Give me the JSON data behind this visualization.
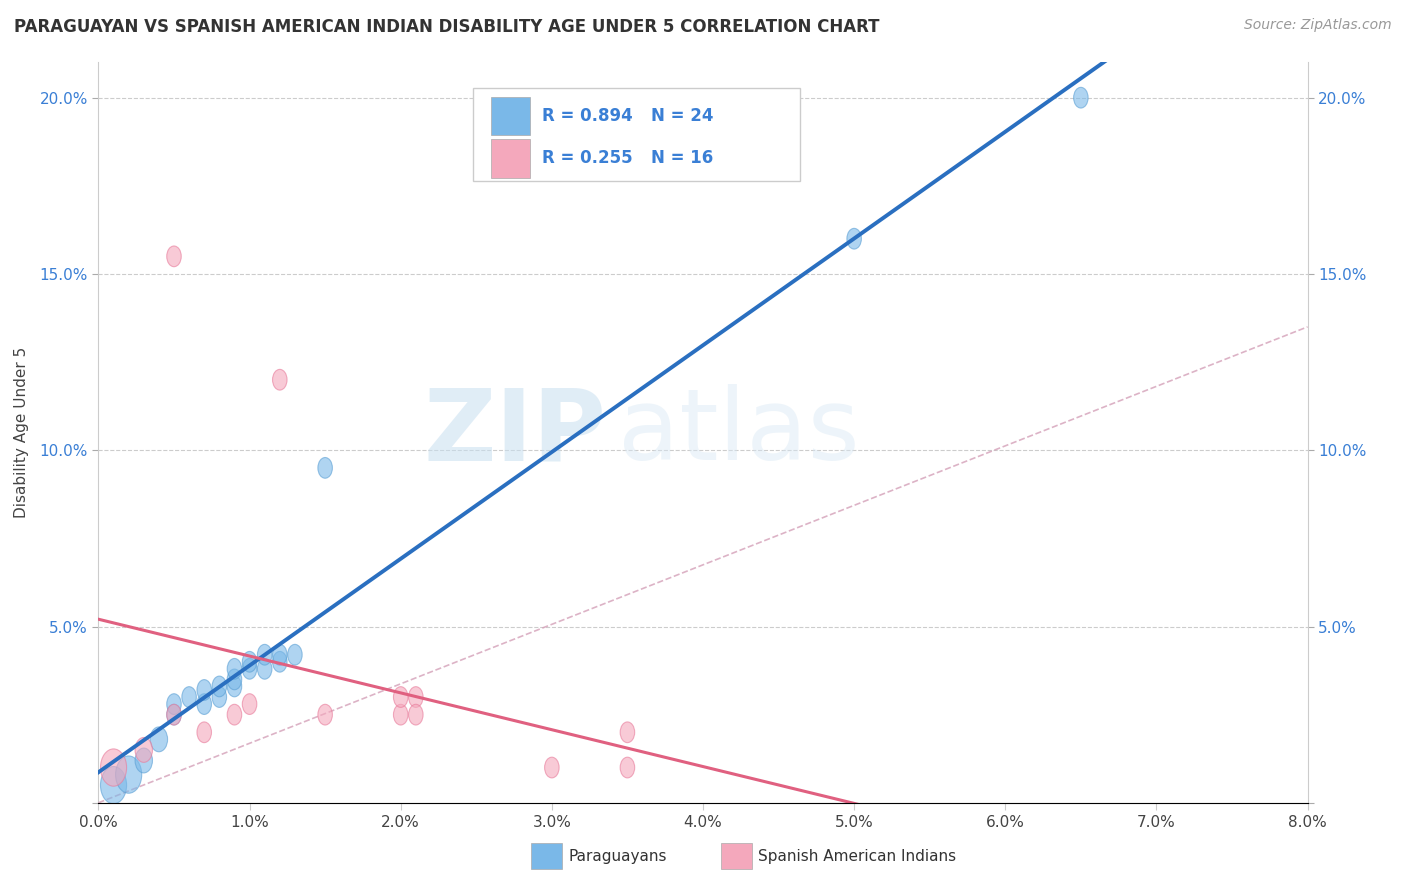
{
  "title": "PARAGUAYAN VS SPANISH AMERICAN INDIAN DISABILITY AGE UNDER 5 CORRELATION CHART",
  "source": "Source: ZipAtlas.com",
  "ylabel": "Disability Age Under 5",
  "xlim": [
    0.0,
    0.08
  ],
  "ylim": [
    0.0,
    0.21
  ],
  "background_color": "#ffffff",
  "watermark_zip": "ZIP",
  "watermark_atlas": "atlas",
  "paraguayan_color": "#7ab8e8",
  "paraguayan_edge": "#5a9fd4",
  "spanish_color": "#f4a8bc",
  "spanish_edge": "#e87a9a",
  "regression_blue": "#2a6fc0",
  "regression_pink": "#e06080",
  "regression_dashed_color": "#e0a0b0",
  "paraguayan_x": [
    0.001,
    0.002,
    0.003,
    0.004,
    0.005,
    0.005,
    0.006,
    0.007,
    0.007,
    0.008,
    0.008,
    0.009,
    0.009,
    0.009,
    0.01,
    0.01,
    0.011,
    0.011,
    0.012,
    0.012,
    0.013,
    0.015,
    0.05,
    0.065
  ],
  "paraguayan_y": [
    0.005,
    0.008,
    0.012,
    0.018,
    0.025,
    0.028,
    0.03,
    0.028,
    0.032,
    0.03,
    0.033,
    0.033,
    0.035,
    0.038,
    0.038,
    0.04,
    0.038,
    0.042,
    0.04,
    0.042,
    0.042,
    0.095,
    0.16,
    0.2
  ],
  "paraguayan_sizes": [
    3.0,
    1.5,
    1.5,
    1.5,
    1.5,
    1.5,
    1.5,
    1.5,
    1.5,
    1.5,
    1.5,
    1.5,
    1.5,
    1.5,
    1.5,
    1.5,
    1.5,
    1.5,
    1.5,
    1.5,
    1.5,
    1.5,
    1.5,
    1.5
  ],
  "spanish_x": [
    0.001,
    0.003,
    0.005,
    0.007,
    0.009,
    0.01,
    0.012,
    0.015,
    0.02,
    0.021,
    0.03,
    0.035,
    0.005,
    0.02,
    0.021,
    0.035
  ],
  "spanish_y": [
    0.01,
    0.015,
    0.155,
    0.02,
    0.025,
    0.028,
    0.12,
    0.025,
    0.025,
    0.03,
    0.01,
    0.01,
    0.025,
    0.03,
    0.025,
    0.02
  ],
  "legend_blue_r": "R = 0.894",
  "legend_blue_n": "N = 24",
  "legend_pink_r": "R = 0.255",
  "legend_pink_n": "N = 16",
  "legend_color": "#3a7fd5",
  "bottom_label_paraguayans": "Paraguayans",
  "bottom_label_spanish": "Spanish American Indians"
}
